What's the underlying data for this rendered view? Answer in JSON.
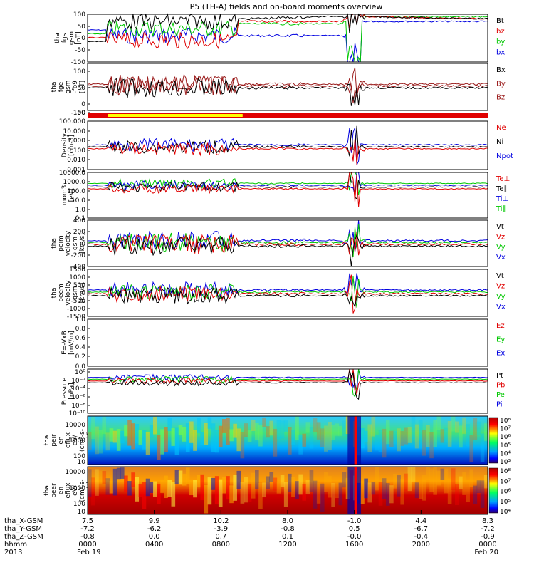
{
  "title": "P5 (TH-A) fields and on-board moments overview",
  "colors": {
    "black": "#000000",
    "red": "#e00000",
    "green": "#00c800",
    "blue": "#0000e0",
    "yellow": "#ffff00",
    "darkred": "#9a1a1a"
  },
  "chart_data": [
    {
      "type": "line",
      "id": "fgs",
      "ylabel": [
        "tha",
        "fgs",
        "gsm",
        "[nT]"
      ],
      "yticks": [
        "100",
        "50",
        "0",
        "-50",
        "-100"
      ],
      "ylim": [
        -100,
        100
      ],
      "legend": [
        {
          "name": "Bt",
          "color": "black"
        },
        {
          "name": "bz",
          "color": "red"
        },
        {
          "name": "by",
          "color": "green"
        },
        {
          "name": "bx",
          "color": "blue"
        }
      ]
    },
    {
      "type": "line",
      "id": "fge",
      "ylabel": [
        "tha",
        "fge",
        "gsm",
        "-fb9",
        "[nT]"
      ],
      "yticks": [
        "100",
        "50",
        "0",
        "-50",
        "-100"
      ],
      "ylim": [
        -125,
        125
      ],
      "legend": [
        {
          "name": "Bx",
          "color": "black"
        },
        {
          "name": "By",
          "color": "darkred"
        },
        {
          "name": "Bz",
          "color": "darkred"
        }
      ]
    },
    {
      "type": "line",
      "id": "density",
      "ylabel": [
        "Density",
        "[cm-3]"
      ],
      "yticks": [
        "100.000",
        "10.000",
        "1.000",
        "0.100",
        "0.010",
        "0.001"
      ],
      "ylim": [
        0.001,
        100
      ],
      "log": true,
      "legend": [
        {
          "name": "Ne",
          "color": "red"
        },
        {
          "name": "Ni",
          "color": "black"
        },
        {
          "name": "Npot",
          "color": "blue"
        }
      ]
    },
    {
      "type": "line",
      "id": "temp",
      "ylabel": [
        "mom3",
        "[eV]"
      ],
      "yticks": [
        "10000.0",
        "1000.0",
        "100.0",
        "10.0",
        "1.0",
        "0.1"
      ],
      "ylim": [
        0.1,
        10000
      ],
      "log": true,
      "legend": [
        {
          "name": "Te⊥",
          "color": "red"
        },
        {
          "name": "Te∥",
          "color": "black"
        },
        {
          "name": "Ti⊥",
          "color": "blue"
        },
        {
          "name": "Ti∥",
          "color": "green"
        }
      ]
    },
    {
      "type": "line",
      "id": "peim",
      "ylabel": [
        "tha",
        "peim",
        "velocity",
        "gsm",
        "[km/s]"
      ],
      "yticks": [
        "400",
        "200",
        "0",
        "-200",
        "-400"
      ],
      "ylim": [
        -400,
        400
      ],
      "legend": [
        {
          "name": "Vt",
          "color": "black"
        },
        {
          "name": "Vz",
          "color": "red"
        },
        {
          "name": "Vy",
          "color": "green"
        },
        {
          "name": "Vx",
          "color": "blue"
        }
      ]
    },
    {
      "type": "line",
      "id": "peem",
      "ylabel": [
        "tha",
        "peem",
        "velocity",
        "gsm",
        "[km/s]"
      ],
      "yticks": [
        "1500",
        "1000",
        "500",
        "0",
        "-500",
        "-1000",
        "-1500"
      ],
      "ylim": [
        -1500,
        1500
      ],
      "legend": [
        {
          "name": "Vt",
          "color": "black"
        },
        {
          "name": "Vz",
          "color": "red"
        },
        {
          "name": "Vy",
          "color": "green"
        },
        {
          "name": "Vx",
          "color": "blue"
        }
      ]
    },
    {
      "type": "line",
      "id": "efield",
      "ylabel": [
        "E=-VxB",
        "[mV/m]"
      ],
      "yticks": [
        "1.0",
        "0.8",
        "0.6",
        "0.4",
        "0.2",
        "0.0"
      ],
      "ylim": [
        0,
        1
      ],
      "legend": [
        {
          "name": "Ez",
          "color": "red"
        },
        {
          "name": "Ey",
          "color": "green"
        },
        {
          "name": "Ex",
          "color": "blue"
        }
      ]
    },
    {
      "type": "line",
      "id": "pressure",
      "ylabel": [
        "Pressure",
        "[nPa]"
      ],
      "yticks": [
        "10⁰",
        "10⁻²",
        "10⁻⁴",
        "10⁻⁶",
        "10⁻⁸",
        "10⁻¹⁰"
      ],
      "ylim": [
        1e-10,
        1
      ],
      "log": true,
      "legend": [
        {
          "name": "Pt",
          "color": "black"
        },
        {
          "name": "Pb",
          "color": "red"
        },
        {
          "name": "Pe",
          "color": "green"
        },
        {
          "name": "Pi",
          "color": "blue"
        }
      ]
    },
    {
      "type": "heatmap",
      "id": "peir",
      "ylabel": [
        "tha",
        "peir",
        "en",
        "eflux",
        "eV/",
        "(cm²-s-",
        "sr-eV)"
      ],
      "yticks": [
        "10000",
        "1000",
        "100",
        "10"
      ],
      "colorbar": [
        "10⁸",
        "10⁷",
        "10⁶",
        "10⁵",
        "10⁴",
        "10³"
      ]
    },
    {
      "type": "heatmap",
      "id": "peer",
      "ylabel": [
        "tha",
        "peer",
        "en",
        "eflux",
        "eV/",
        "(cm²-s-",
        "sr-eV)"
      ],
      "yticks": [
        "10000",
        "1000",
        "100",
        "10"
      ],
      "colorbar": [
        "10⁸",
        "10⁷",
        "10⁶",
        "10⁵",
        "10⁴"
      ]
    }
  ],
  "xaxis": {
    "tick_hours": [
      0,
      4,
      8,
      12,
      16,
      20,
      24
    ],
    "rows": [
      {
        "label": "tha_X-GSM",
        "values": [
          "7.5",
          "9.9",
          "10.2",
          "8.0",
          "-1.0",
          "4.4",
          "8.3"
        ]
      },
      {
        "label": "tha_Y-GSM",
        "values": [
          "-7.2",
          "-6.2",
          "-3.9",
          "-0.8",
          "0.5",
          "-6.7",
          "-7.2"
        ]
      },
      {
        "label": "tha_Z-GSM",
        "values": [
          "-0.8",
          "0.0",
          "0.7",
          "0.1",
          "-0.0",
          "-0.4",
          "-0.9"
        ]
      },
      {
        "label": "hhmm",
        "values": [
          "0000",
          "0400",
          "0800",
          "1200",
          "1600",
          "2000",
          "0000"
        ]
      },
      {
        "label": "2013",
        "values": [
          "Feb 19",
          "",
          "",
          "",
          "",
          "",
          "Feb 20"
        ]
      }
    ]
  }
}
